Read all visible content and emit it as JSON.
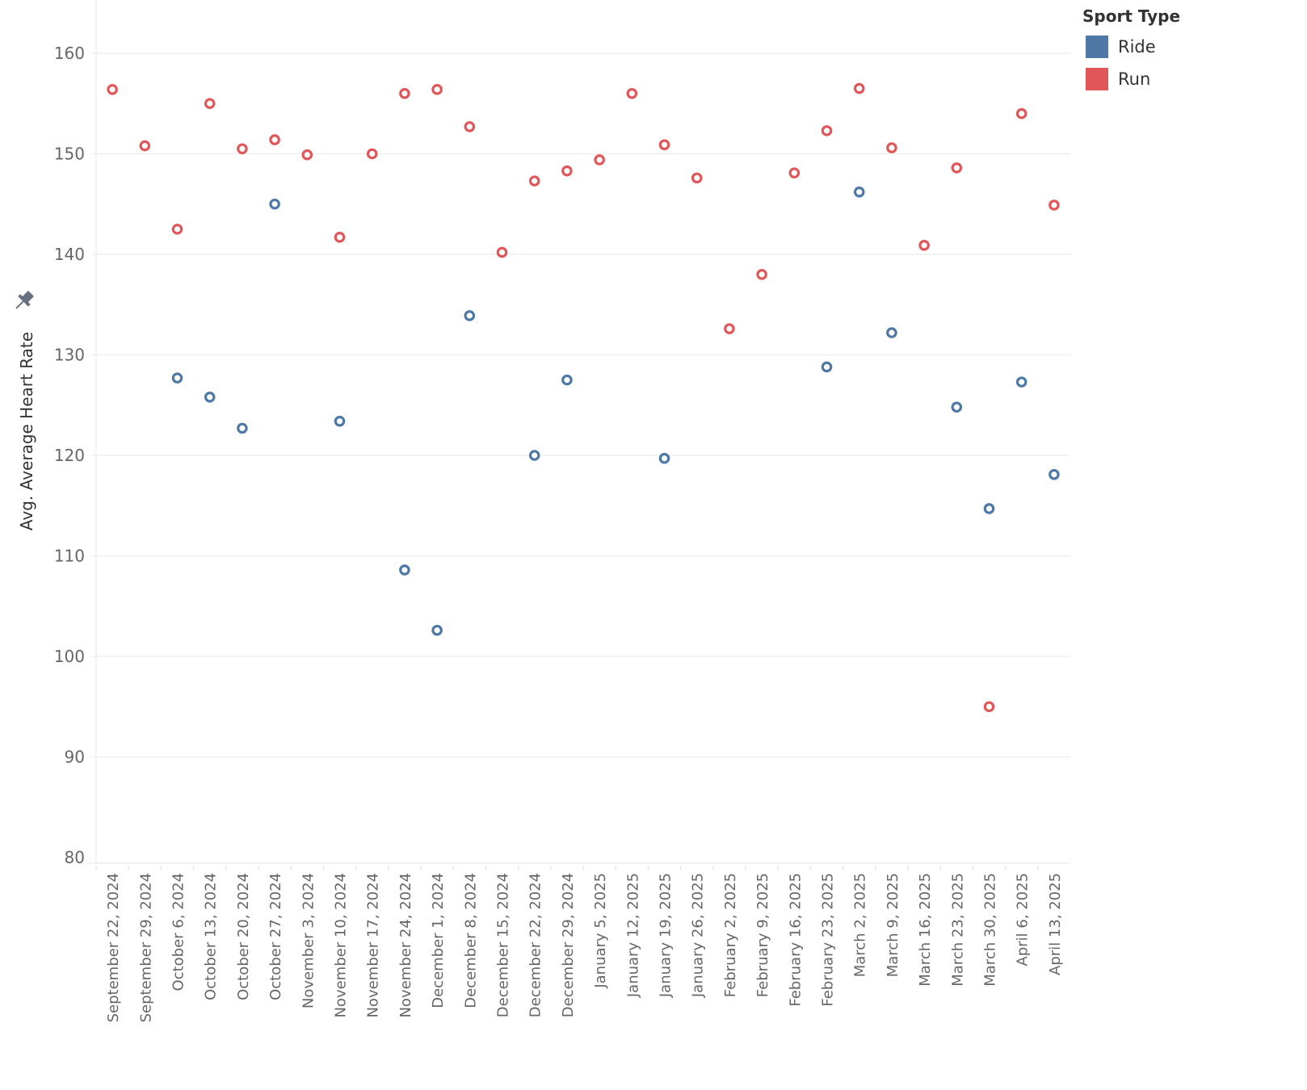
{
  "chart_data": {
    "type": "scatter",
    "title": "",
    "xlabel": "",
    "ylabel": "Avg. Average Heart Rate",
    "ylim": [
      79.4,
      164.8
    ],
    "yticks": [
      80,
      90,
      100,
      110,
      120,
      130,
      140,
      150,
      160
    ],
    "grid": true,
    "legend_title": "Sport Type",
    "legend_position": "top-right",
    "categories": [
      "September 22, 2024",
      "September 29, 2024",
      "October 6, 2024",
      "October 13, 2024",
      "October 20, 2024",
      "October 27, 2024",
      "November 3, 2024",
      "November 10, 2024",
      "November 17, 2024",
      "November 24, 2024",
      "December 1, 2024",
      "December 8, 2024",
      "December 15, 2024",
      "December 22, 2024",
      "December 29, 2024",
      "January 5, 2025",
      "January 12, 2025",
      "January 19, 2025",
      "January 26, 2025",
      "February 2, 2025",
      "February 9, 2025",
      "February 16, 2025",
      "February 23, 2025",
      "March 2, 2025",
      "March 9, 2025",
      "March 16, 2025",
      "March 23, 2025",
      "March 30, 2025",
      "April 6, 2025",
      "April 13, 2025"
    ],
    "series": [
      {
        "name": "Ride",
        "color": "#4e79a7",
        "values": [
          null,
          null,
          127.7,
          125.8,
          122.7,
          145.0,
          null,
          123.4,
          null,
          108.6,
          102.6,
          133.9,
          null,
          120.0,
          127.5,
          null,
          null,
          119.7,
          null,
          null,
          null,
          null,
          128.8,
          146.2,
          132.2,
          null,
          124.8,
          114.7,
          127.3,
          118.1
        ]
      },
      {
        "name": "Run",
        "color": "#e15759",
        "values": [
          156.4,
          150.8,
          142.5,
          155.0,
          150.5,
          151.4,
          149.9,
          141.7,
          150.0,
          156.0,
          156.4,
          152.7,
          140.2,
          147.3,
          148.3,
          149.4,
          156.0,
          150.9,
          147.6,
          132.6,
          138.0,
          148.1,
          152.3,
          156.5,
          150.6,
          140.9,
          148.6,
          95.0,
          154.0,
          144.9
        ]
      }
    ]
  },
  "icons": {
    "pin": "pin-icon"
  }
}
